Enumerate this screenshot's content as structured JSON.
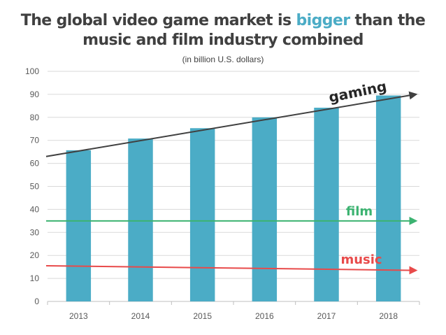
{
  "chart_data": {
    "type": "bar",
    "title_parts": {
      "before": "The global video game market is ",
      "highlight": "bigger",
      "after_line1": " than the",
      "line2": "music and film industry combined"
    },
    "subtitle": "(in billion U.S. dollars)",
    "categories": [
      "2013",
      "2014",
      "2015",
      "2016",
      "2017",
      "2018"
    ],
    "series": [
      {
        "values": [
          65.7,
          70.8,
          75.3,
          80.0,
          84.2,
          89.5
        ]
      }
    ],
    "ylim": [
      0,
      100
    ],
    "yticks": [
      0,
      10,
      20,
      30,
      40,
      50,
      60,
      70,
      80,
      90,
      100
    ],
    "grid": true,
    "bar_color": "#4bacc6",
    "trend_lines": [
      {
        "label": "gaming",
        "color": "#404040",
        "start": 63,
        "end": 90
      },
      {
        "label": "film",
        "color": "#3cb371",
        "start": 35,
        "end": 35
      },
      {
        "label": "music",
        "color": "#e84a4a",
        "start": 15.5,
        "end": 13.5
      }
    ]
  }
}
